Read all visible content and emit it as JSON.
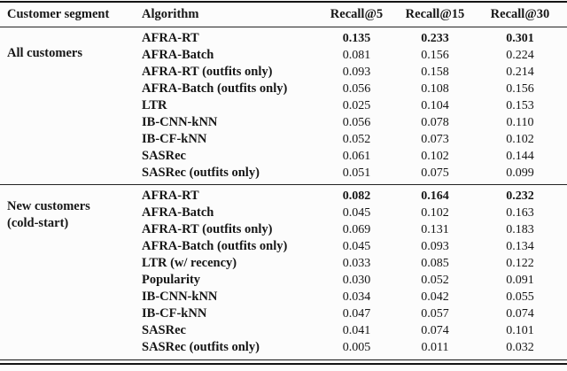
{
  "table": {
    "headers": [
      "Customer segment",
      "Algorithm",
      "Recall@5",
      "Recall@15",
      "Recall@30"
    ],
    "sections": [
      {
        "segment_lines": [
          "All customers"
        ],
        "rows": [
          {
            "algorithm": "AFRA-RT",
            "best": true,
            "values": [
              "0.135",
              "0.233",
              "0.301"
            ]
          },
          {
            "algorithm": "AFRA-Batch",
            "best": false,
            "values": [
              "0.081",
              "0.156",
              "0.224"
            ]
          },
          {
            "algorithm": "AFRA-RT (outfits only)",
            "best": false,
            "values": [
              "0.093",
              "0.158",
              "0.214"
            ]
          },
          {
            "algorithm": "AFRA-Batch (outfits only)",
            "best": false,
            "values": [
              "0.056",
              "0.108",
              "0.156"
            ]
          },
          {
            "algorithm": "LTR",
            "best": false,
            "values": [
              "0.025",
              "0.104",
              "0.153"
            ]
          },
          {
            "algorithm": "IB-CNN-kNN",
            "best": false,
            "values": [
              "0.056",
              "0.078",
              "0.110"
            ]
          },
          {
            "algorithm": "IB-CF-kNN",
            "best": false,
            "values": [
              "0.052",
              "0.073",
              "0.102"
            ]
          },
          {
            "algorithm": "SASRec",
            "best": false,
            "values": [
              "0.061",
              "0.102",
              "0.144"
            ]
          },
          {
            "algorithm": "SASRec (outfits only)",
            "best": false,
            "values": [
              "0.051",
              "0.075",
              "0.099"
            ]
          }
        ]
      },
      {
        "segment_lines": [
          "New customers",
          "(cold-start)"
        ],
        "rows": [
          {
            "algorithm": "AFRA-RT",
            "best": true,
            "values": [
              "0.082",
              "0.164",
              "0.232"
            ]
          },
          {
            "algorithm": "AFRA-Batch",
            "best": false,
            "values": [
              "0.045",
              "0.102",
              "0.163"
            ]
          },
          {
            "algorithm": "AFRA-RT (outfits only)",
            "best": false,
            "values": [
              "0.069",
              "0.131",
              "0.183"
            ]
          },
          {
            "algorithm": "AFRA-Batch (outfits only)",
            "best": false,
            "values": [
              "0.045",
              "0.093",
              "0.134"
            ]
          },
          {
            "algorithm": "LTR (w/ recency)",
            "best": false,
            "values": [
              "0.033",
              "0.085",
              "0.122"
            ]
          },
          {
            "algorithm": "Popularity",
            "best": false,
            "values": [
              "0.030",
              "0.052",
              "0.091"
            ]
          },
          {
            "algorithm": "IB-CNN-kNN",
            "best": false,
            "values": [
              "0.034",
              "0.042",
              "0.055"
            ]
          },
          {
            "algorithm": "IB-CF-kNN",
            "best": false,
            "values": [
              "0.047",
              "0.057",
              "0.074"
            ]
          },
          {
            "algorithm": "SASRec",
            "best": false,
            "values": [
              "0.041",
              "0.074",
              "0.101"
            ]
          },
          {
            "algorithm": "SASRec (outfits only)",
            "best": false,
            "values": [
              "0.005",
              "0.011",
              "0.032"
            ]
          }
        ]
      }
    ]
  },
  "colors": {
    "text": "#161616",
    "rule": "#141414",
    "background": "#fcfcfc"
  }
}
